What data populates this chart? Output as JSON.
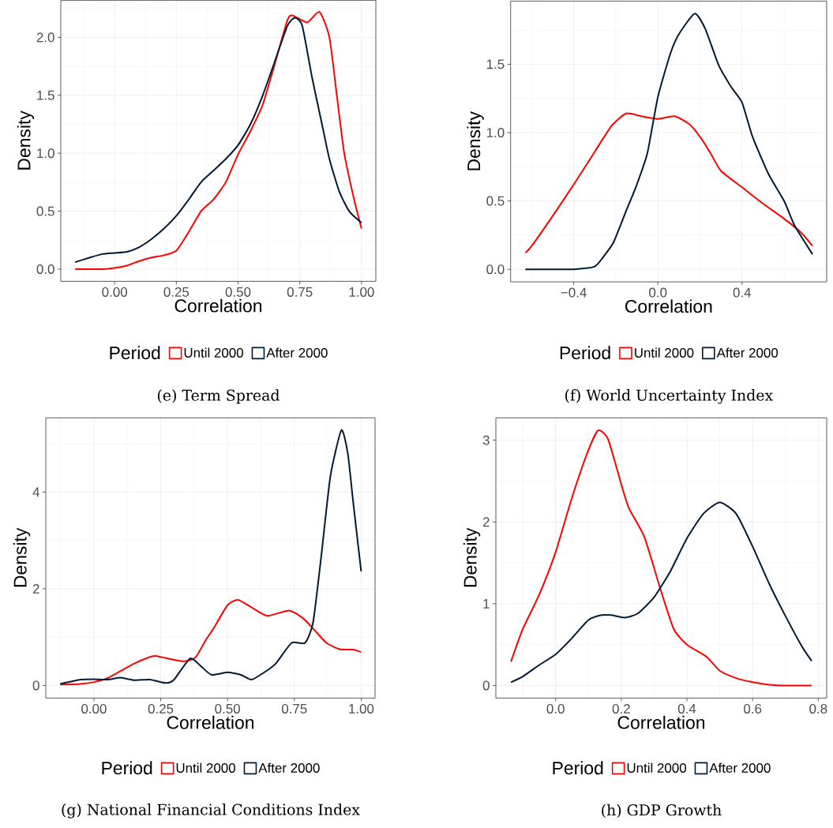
{
  "chart_data": [
    {
      "type": "line",
      "xlabel": "Correlation",
      "ylabel": "Density",
      "legend_title": "Period",
      "annotations": [
        "(e) Term Spread"
      ],
      "xlim": [
        -0.218,
        1.058
      ],
      "ylim": [
        -0.105,
        2.32
      ],
      "xticks": [
        {
          "value": 0,
          "label": "0.00"
        },
        {
          "value": 0.25,
          "label": "0.25"
        },
        {
          "value": 0.5,
          "label": "0.50"
        },
        {
          "value": 0.75,
          "label": "0.75"
        },
        {
          "value": 1,
          "label": "1.00"
        }
      ],
      "yticks": [
        {
          "value": 0,
          "label": "0.0"
        },
        {
          "value": 0.5,
          "label": "0.5"
        },
        {
          "value": 1,
          "label": "1.0"
        },
        {
          "value": 1.5,
          "label": "1.5"
        },
        {
          "value": 2,
          "label": "2.0"
        }
      ],
      "grid": true,
      "legend": "bottom",
      "series": [
        {
          "name": "Until 2000",
          "color": "#ff0000",
          "x": [
            -0.16,
            -0.1,
            -0.05,
            0.0,
            0.05,
            0.1,
            0.15,
            0.2,
            0.25,
            0.3,
            0.35,
            0.4,
            0.45,
            0.5,
            0.55,
            0.6,
            0.65,
            0.7,
            0.72,
            0.78,
            0.83,
            0.87,
            0.9,
            0.93,
            0.97,
            1.0
          ],
          "values": [
            0.0,
            0.0,
            0.0,
            0.01,
            0.03,
            0.07,
            0.1,
            0.12,
            0.16,
            0.32,
            0.5,
            0.6,
            0.75,
            0.99,
            1.19,
            1.42,
            1.78,
            2.15,
            2.19,
            2.13,
            2.22,
            2.0,
            1.5,
            1.0,
            0.6,
            0.35
          ]
        },
        {
          "name": "After 2000",
          "color": "#001a33",
          "x": [
            -0.16,
            -0.1,
            -0.05,
            0.0,
            0.05,
            0.1,
            0.15,
            0.2,
            0.25,
            0.3,
            0.35,
            0.4,
            0.45,
            0.5,
            0.55,
            0.6,
            0.65,
            0.7,
            0.73,
            0.76,
            0.8,
            0.84,
            0.87,
            0.91,
            0.95,
            1.0
          ],
          "values": [
            0.06,
            0.1,
            0.13,
            0.14,
            0.15,
            0.19,
            0.26,
            0.35,
            0.46,
            0.6,
            0.75,
            0.85,
            0.95,
            1.07,
            1.25,
            1.5,
            1.8,
            2.1,
            2.17,
            2.1,
            1.65,
            1.25,
            0.95,
            0.67,
            0.5,
            0.4
          ]
        }
      ]
    },
    {
      "type": "line",
      "xlabel": "Correlation",
      "ylabel": "Density",
      "legend_title": "Period",
      "annotations": [
        "(f) World Uncertainty Index"
      ],
      "xlim": [
        -0.7,
        0.8025
      ],
      "ylim": [
        -0.092,
        1.962
      ],
      "xticks": [
        {
          "value": -0.4,
          "label": "−0.4"
        },
        {
          "value": 0,
          "label": "0.0"
        },
        0.4
      ],
      "yticks": [
        {
          "value": 0,
          "label": "0.0"
        },
        0.5,
        {
          "value": 1,
          "label": "1.0"
        },
        1.5
      ],
      "grid": true,
      "legend": "bottom",
      "series": [
        {
          "name": "Until 2000",
          "color": "#ff0000",
          "x": [
            -0.63,
            -0.6,
            -0.5,
            -0.4,
            -0.3,
            -0.22,
            -0.15,
            -0.08,
            0.0,
            0.08,
            0.15,
            0.2,
            0.25,
            0.3,
            0.4,
            0.5,
            0.6,
            0.68,
            0.735
          ],
          "values": [
            0.12,
            0.17,
            0.39,
            0.62,
            0.86,
            1.05,
            1.14,
            1.12,
            1.1,
            1.12,
            1.06,
            0.97,
            0.85,
            0.72,
            0.6,
            0.48,
            0.37,
            0.27,
            0.17
          ]
        },
        {
          "name": "After 2000",
          "color": "#001a33",
          "x": [
            -0.63,
            -0.5,
            -0.4,
            -0.3,
            -0.25,
            -0.21,
            -0.15,
            -0.1,
            -0.05,
            0.0,
            0.06,
            0.1,
            0.175,
            0.225,
            0.29,
            0.35,
            0.4,
            0.45,
            0.525,
            0.6,
            0.65,
            0.735
          ],
          "values": [
            0.0,
            0.0,
            0.0,
            0.02,
            0.11,
            0.2,
            0.43,
            0.62,
            0.85,
            1.26,
            1.58,
            1.72,
            1.87,
            1.76,
            1.49,
            1.33,
            1.22,
            0.97,
            0.7,
            0.5,
            0.32,
            0.11
          ]
        }
      ]
    },
    {
      "type": "line",
      "xlabel": "Correlation",
      "ylabel": "Density",
      "legend_title": "Period",
      "annotations": [
        "(g) National Financial Conditions Index"
      ],
      "xlim": [
        -0.18,
        1.052
      ],
      "ylim": [
        -0.261,
        5.535
      ],
      "xticks": [
        {
          "value": 0,
          "label": "0.00"
        },
        {
          "value": 0.25,
          "label": "0.25"
        },
        {
          "value": 0.5,
          "label": "0.50"
        },
        {
          "value": 0.75,
          "label": "0.75"
        },
        {
          "value": 1,
          "label": "1.00"
        }
      ],
      "yticks": [
        0,
        2,
        4
      ],
      "grid": true,
      "legend": "bottom",
      "series": [
        {
          "name": "Until 2000",
          "color": "#ff0000",
          "x": [
            -0.126,
            -0.05,
            0.0,
            0.05,
            0.1,
            0.15,
            0.2,
            0.23,
            0.3,
            0.34,
            0.38,
            0.42,
            0.45,
            0.5,
            0.54,
            0.6,
            0.65,
            0.73,
            0.78,
            0.82,
            0.87,
            0.92,
            0.97,
            1.0
          ],
          "values": [
            0.02,
            0.03,
            0.07,
            0.15,
            0.3,
            0.45,
            0.57,
            0.61,
            0.53,
            0.5,
            0.58,
            0.95,
            1.2,
            1.66,
            1.77,
            1.58,
            1.44,
            1.55,
            1.4,
            1.18,
            0.88,
            0.75,
            0.74,
            0.69
          ]
        },
        {
          "name": "After 2000",
          "color": "#001a33",
          "x": [
            -0.126,
            -0.05,
            0.0,
            0.05,
            0.1,
            0.15,
            0.21,
            0.27,
            0.3,
            0.36,
            0.4,
            0.44,
            0.5,
            0.55,
            0.59,
            0.64,
            0.68,
            0.74,
            0.79,
            0.82,
            0.85,
            0.885,
            0.926,
            0.95,
            0.97,
            1.0
          ],
          "values": [
            0.03,
            0.12,
            0.13,
            0.12,
            0.16,
            0.11,
            0.12,
            0.05,
            0.12,
            0.56,
            0.4,
            0.22,
            0.27,
            0.22,
            0.12,
            0.28,
            0.45,
            0.88,
            0.88,
            1.3,
            2.64,
            4.33,
            5.28,
            4.8,
            3.8,
            2.36
          ]
        }
      ]
    },
    {
      "type": "line",
      "xlabel": "Correlation",
      "ylabel": "Density",
      "legend_title": "Period",
      "annotations": [
        "(h) GDP Growth"
      ],
      "xlim": [
        -0.182,
        0.8257
      ],
      "ylim": [
        -0.154,
        3.273
      ],
      "xticks": [
        {
          "value": 0,
          "label": "0.0"
        },
        0.2,
        0.4,
        0.6,
        0.8
      ],
      "yticks": [
        0,
        1,
        2,
        3
      ],
      "grid": true,
      "legend": "bottom",
      "series": [
        {
          "name": "Until 2000",
          "color": "#ff0000",
          "x": [
            -0.136,
            -0.1,
            -0.05,
            0.0,
            0.05,
            0.1,
            0.13,
            0.16,
            0.2,
            0.223,
            0.27,
            0.32,
            0.36,
            0.4,
            0.46,
            0.5,
            0.55,
            0.6,
            0.65,
            0.7,
            0.78
          ],
          "values": [
            0.29,
            0.69,
            1.11,
            1.63,
            2.3,
            2.88,
            3.12,
            3.01,
            2.46,
            2.17,
            1.82,
            1.17,
            0.69,
            0.5,
            0.35,
            0.18,
            0.09,
            0.04,
            0.01,
            0.0,
            0.0
          ]
        },
        {
          "name": "After 2000",
          "color": "#001a33",
          "x": [
            -0.136,
            -0.1,
            -0.05,
            0.0,
            0.05,
            0.1,
            0.14,
            0.17,
            0.21,
            0.25,
            0.3,
            0.35,
            0.4,
            0.45,
            0.5,
            0.55,
            0.6,
            0.65,
            0.7,
            0.75,
            0.78
          ],
          "values": [
            0.04,
            0.11,
            0.25,
            0.38,
            0.58,
            0.8,
            0.86,
            0.86,
            0.83,
            0.88,
            1.08,
            1.4,
            1.8,
            2.1,
            2.24,
            2.1,
            1.7,
            1.25,
            0.85,
            0.48,
            0.3
          ]
        }
      ]
    }
  ]
}
